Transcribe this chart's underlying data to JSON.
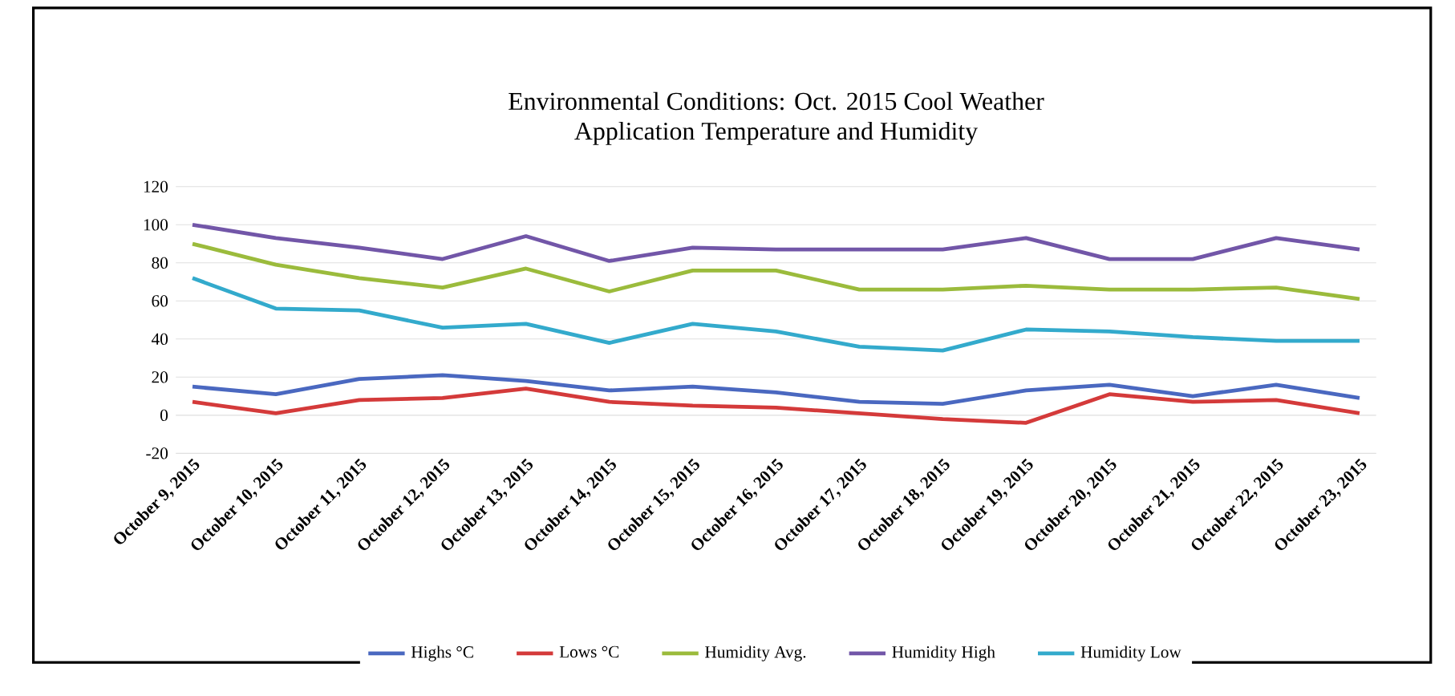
{
  "chart_data": {
    "type": "line",
    "title": "Environmental Conditions: Oct. 2015 Cool Weather\nApplication Temperature and Humidity",
    "categories": [
      "October 9, 2015",
      "October 10, 2015",
      "October 11, 2015",
      "October 12, 2015",
      "October 13, 2015",
      "October 14, 2015",
      "October 15, 2015",
      "October 16, 2015",
      "October 17, 2015",
      "October 18, 2015",
      "October 19, 2015",
      "October 20, 2015",
      "October 21, 2015",
      "October 22, 2015",
      "October 23, 2015"
    ],
    "series": [
      {
        "name": "Highs °C",
        "color": "#4a68c0",
        "values": [
          15,
          11,
          19,
          21,
          18,
          13,
          15,
          12,
          7,
          6,
          13,
          16,
          10,
          16,
          9
        ]
      },
      {
        "name": "Lows °C",
        "color": "#d43a3a",
        "values": [
          7,
          1,
          8,
          9,
          14,
          7,
          5,
          4,
          1,
          -2,
          -4,
          11,
          7,
          8,
          1
        ]
      },
      {
        "name": "Humidity Avg.",
        "color": "#9bbb3c",
        "values": [
          90,
          79,
          72,
          67,
          77,
          65,
          76,
          76,
          66,
          66,
          68,
          66,
          66,
          67,
          61
        ]
      },
      {
        "name": "Humidity High",
        "color": "#7256a8",
        "values": [
          100,
          93,
          88,
          82,
          94,
          81,
          88,
          87,
          87,
          87,
          93,
          82,
          82,
          93,
          87
        ]
      },
      {
        "name": "Humidity Low",
        "color": "#33aacc",
        "values": [
          72,
          56,
          55,
          46,
          48,
          38,
          48,
          44,
          36,
          34,
          45,
          44,
          41,
          39,
          39
        ]
      }
    ],
    "ylim": [
      -20,
      120
    ],
    "yticks": [
      -20,
      0,
      20,
      40,
      60,
      80,
      100,
      120
    ],
    "grid": "y",
    "legend": "bottom",
    "marker": "none",
    "line_style": "solid"
  }
}
